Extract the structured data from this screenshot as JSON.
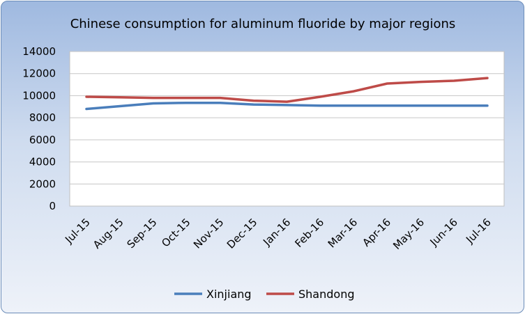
{
  "chart_data": {
    "type": "line",
    "title": "Chinese consumption for aluminum fluoride by major regions",
    "categories": [
      "Jul-15",
      "Aug-15",
      "Sep-15",
      "Oct-15",
      "Nov-15",
      "Dec-15",
      "Jan-16",
      "Feb-16",
      "Mar-16",
      "Apr-16",
      "May-16",
      "Jun-16",
      "Jul-16"
    ],
    "series": [
      {
        "name": "Xinjiang",
        "color": "#4a7ebb",
        "values": [
          8800,
          9050,
          9300,
          9350,
          9350,
          9200,
          9150,
          9100,
          9100,
          9100,
          9100,
          9100,
          9100
        ]
      },
      {
        "name": "Shandong",
        "color": "#be4b48",
        "values": [
          9900,
          9850,
          9800,
          9800,
          9800,
          9550,
          9450,
          9900,
          10400,
          11100,
          11250,
          11350,
          11600
        ]
      }
    ],
    "y_ticks": [
      "0",
      "2000",
      "4000",
      "6000",
      "8000",
      "10000",
      "12000",
      "14000"
    ],
    "ylim": [
      0,
      14000
    ],
    "grid": true,
    "legend_position": "bottom"
  }
}
